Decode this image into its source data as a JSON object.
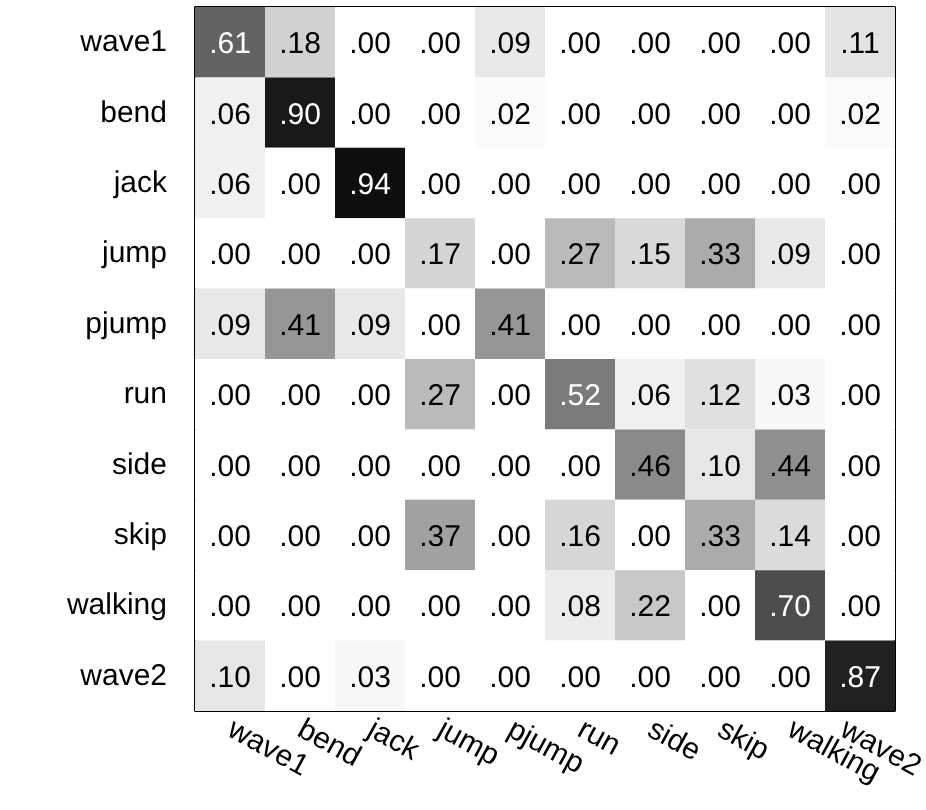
{
  "chart_data": {
    "type": "heatmap",
    "categories": [
      "wave1",
      "bend",
      "jack",
      "jump",
      "pjump",
      "run",
      "side",
      "skip",
      "walking",
      "wave2"
    ],
    "y_categories": [
      "wave1",
      "bend",
      "jack",
      "jump",
      "pjump",
      "run",
      "side",
      "skip",
      "walking",
      "wave2"
    ],
    "cells": [
      [
        0.61,
        0.18,
        0.0,
        0.0,
        0.09,
        0.0,
        0.0,
        0.0,
        0.0,
        0.11
      ],
      [
        0.06,
        0.9,
        0.0,
        0.0,
        0.02,
        0.0,
        0.0,
        0.0,
        0.0,
        0.02
      ],
      [
        0.06,
        0.0,
        0.94,
        0.0,
        0.0,
        0.0,
        0.0,
        0.0,
        0.0,
        0.0
      ],
      [
        0.0,
        0.0,
        0.0,
        0.17,
        0.0,
        0.27,
        0.15,
        0.33,
        0.09,
        0.0
      ],
      [
        0.09,
        0.41,
        0.09,
        0.0,
        0.41,
        0.0,
        0.0,
        0.0,
        0.0,
        0.0
      ],
      [
        0.0,
        0.0,
        0.0,
        0.27,
        0.0,
        0.52,
        0.06,
        0.12,
        0.03,
        0.0
      ],
      [
        0.0,
        0.0,
        0.0,
        0.0,
        0.0,
        0.0,
        0.46,
        0.1,
        0.44,
        0.0
      ],
      [
        0.0,
        0.0,
        0.0,
        0.37,
        0.0,
        0.16,
        0.0,
        0.33,
        0.14,
        0.0
      ],
      [
        0.0,
        0.0,
        0.0,
        0.0,
        0.0,
        0.08,
        0.22,
        0.0,
        0.7,
        0.0
      ],
      [
        0.1,
        0.0,
        0.03,
        0.0,
        0.0,
        0.0,
        0.0,
        0.0,
        0.0,
        0.87
      ]
    ],
    "cell_labels": [
      [
        ".61",
        ".18",
        ".00",
        ".00",
        ".09",
        ".00",
        ".00",
        ".00",
        ".00",
        ".11"
      ],
      [
        ".06",
        ".90",
        ".00",
        ".00",
        ".02",
        ".00",
        ".00",
        ".00",
        ".00",
        ".02"
      ],
      [
        ".06",
        ".00",
        ".94",
        ".00",
        ".00",
        ".00",
        ".00",
        ".00",
        ".00",
        ".00"
      ],
      [
        ".00",
        ".00",
        ".00",
        ".17",
        ".00",
        ".27",
        ".15",
        ".33",
        ".09",
        ".00"
      ],
      [
        ".09",
        ".41",
        ".09",
        ".00",
        ".41",
        ".00",
        ".00",
        ".00",
        ".00",
        ".00"
      ],
      [
        ".00",
        ".00",
        ".00",
        ".27",
        ".00",
        ".52",
        ".06",
        ".12",
        ".03",
        ".00"
      ],
      [
        ".00",
        ".00",
        ".00",
        ".00",
        ".00",
        ".00",
        ".46",
        ".10",
        ".44",
        ".00"
      ],
      [
        ".00",
        ".00",
        ".00",
        ".37",
        ".00",
        ".16",
        ".00",
        ".33",
        ".14",
        ".00"
      ],
      [
        ".00",
        ".00",
        ".00",
        ".00",
        ".00",
        ".08",
        ".22",
        ".00",
        ".70",
        ".00"
      ],
      [
        ".10",
        ".00",
        ".03",
        ".00",
        ".00",
        ".00",
        ".00",
        ".00",
        ".00",
        ".87"
      ]
    ]
  }
}
